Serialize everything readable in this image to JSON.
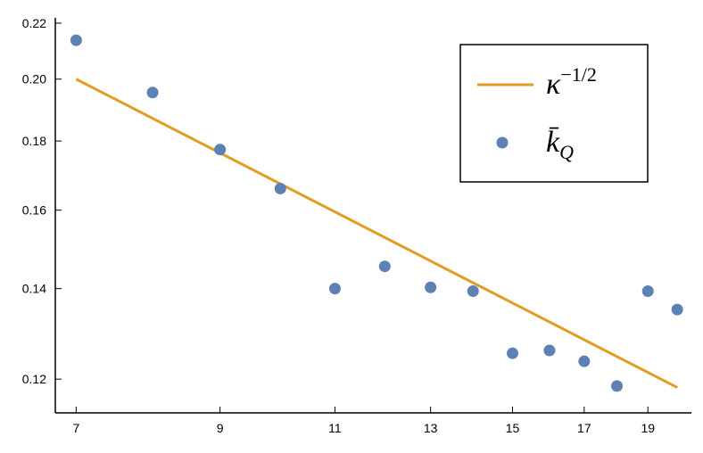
{
  "chart_data": {
    "type": "scatter",
    "x": [
      7,
      8,
      9,
      10,
      11,
      12,
      13,
      14,
      15,
      16,
      17,
      18,
      19,
      20
    ],
    "series": [
      {
        "name": "κ^−1/2",
        "kind": "line",
        "color": "#e19c24",
        "x": [
          7,
          20
        ],
        "values": [
          0.2,
          0.1183
        ]
      },
      {
        "name": "k̄_Q",
        "kind": "scatter",
        "color": "#5e81b5",
        "values": [
          0.2137,
          0.1955,
          0.1774,
          0.166,
          0.14,
          0.1454,
          0.1403,
          0.1394,
          0.1254,
          0.126,
          0.1237,
          0.1186,
          0.1394,
          0.1351
        ]
      }
    ],
    "xlim": [
      6.75,
      20.5
    ],
    "ylim": [
      0.1133,
      0.222
    ],
    "xticks": [
      7,
      9,
      11,
      13,
      15,
      17,
      19
    ],
    "yticks": [
      {
        "value": 0.12,
        "label": "0.12"
      },
      {
        "value": 0.14,
        "label": "0.14"
      },
      {
        "value": 0.16,
        "label": "0.16"
      },
      {
        "value": 0.18,
        "label": "0.18"
      },
      {
        "value": 0.2,
        "label": "0.20"
      },
      {
        "value": 0.22,
        "label": "0.22"
      }
    ],
    "xscale": "log",
    "yscale": "log"
  }
}
